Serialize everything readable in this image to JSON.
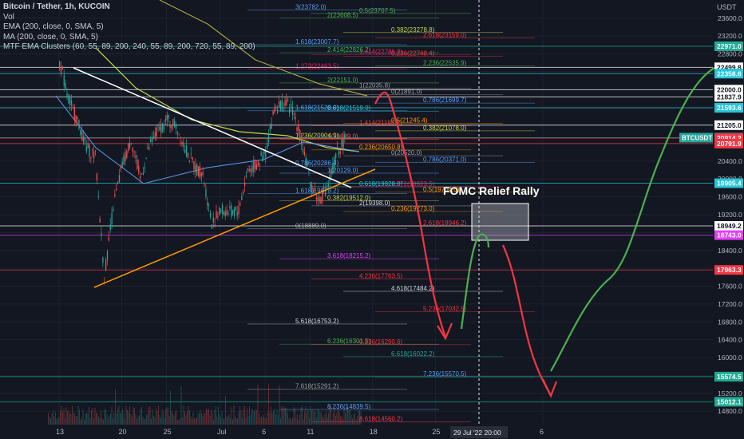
{
  "legend": {
    "title": "Bitcoin / Tether, 1h, KUCOIN",
    "vol": "Vol",
    "ema": "EMA (200, close, 0, SMA, 5)",
    "ma": "MA (200, close, 0, SMA, 5)",
    "mtf": "MTF EMA Clusters (60, 55, 89, 200, 240, 55, 89, 200, 720, 55, 89, 200)"
  },
  "currency": "USDT",
  "chart_data": {
    "type": "candlestick",
    "symbol": "BTCUSDT",
    "exchange": "KUCOIN",
    "interval": "1h",
    "annotation": "FOMC Relief Rally",
    "crosshair_label": "29 Jul '22   20:00",
    "ylim": [
      14500,
      23900
    ],
    "y_ticks": [
      23600,
      23200,
      22800,
      22400,
      22000,
      21600,
      21200,
      20800,
      20400,
      20000,
      19600,
      19200,
      18800,
      18400,
      18000,
      17600,
      17200,
      16800,
      16400,
      16000,
      15600,
      15200,
      14800
    ],
    "x_ticks": [
      {
        "label": "13",
        "date": "2022-06-13"
      },
      {
        "label": "20",
        "date": "2022-06-20"
      },
      {
        "label": "25",
        "date": "2022-06-25"
      },
      {
        "label": "Jul",
        "date": "2022-07-01"
      },
      {
        "label": "6",
        "date": "2022-07-06"
      },
      {
        "label": "11",
        "date": "2022-07-11"
      },
      {
        "label": "18",
        "date": "2022-07-18"
      },
      {
        "label": "25",
        "date": "2022-07-25"
      },
      {
        "label": "6",
        "date": "2022-08-06"
      }
    ],
    "price_markers": [
      {
        "value": "22971.0",
        "color": "#22ab94"
      },
      {
        "value": "22499.8",
        "color": "#ffffff"
      },
      {
        "value": "22358.6",
        "color": "#26c6da"
      },
      {
        "value": "22000.0",
        "color": "#ffffff"
      },
      {
        "value": "21837.9",
        "color": "#ffffff"
      },
      {
        "value": "21593.6",
        "color": "#26c6da"
      },
      {
        "value": "21205.0",
        "color": "#ffffff"
      },
      {
        "value": "BTCUSDT",
        "price": "20924.3",
        "color": "#26a69a"
      },
      {
        "value": "20914.2",
        "color": "#f23645"
      },
      {
        "value": "20791.9",
        "color": "#f23645"
      },
      {
        "value": "19905.4",
        "color": "#26c6da"
      },
      {
        "value": "18949.2",
        "color": "#ffffff"
      },
      {
        "value": "18743.0",
        "color": "#e040fb"
      },
      {
        "value": "17963.3",
        "color": "#f23645"
      },
      {
        "value": "15574.5",
        "color": "#22ab94"
      },
      {
        "value": "15012.1",
        "color": "#22ab94"
      }
    ],
    "fib_levels": [
      {
        "label": "3(23782.0)",
        "value": 23782,
        "color": "#5b9cf6"
      },
      {
        "label": "2(23608.5)",
        "value": 23608.5,
        "color": "#4caf50"
      },
      {
        "label": "0.5(23707.5)",
        "value": 23707.5,
        "color": "#4caf50"
      },
      {
        "label": "0.382(23278.8)",
        "value": 23278.8,
        "color": "#c6d84a"
      },
      {
        "label": "2.618(23159.0)",
        "value": 23159,
        "color": "#f23645"
      },
      {
        "label": "1.618(23007.7)",
        "value": 23007.7,
        "color": "#5b9cf6"
      },
      {
        "label": "2.414(22826.2)",
        "value": 22826.2,
        "color": "#4caf50"
      },
      {
        "label": "1.414(22786.2)",
        "value": 22786.2,
        "color": "#e91e63"
      },
      {
        "label": "0.236(22748.4)",
        "value": 22748.4,
        "color": "#f23645"
      },
      {
        "label": "2.236(22535.9)",
        "value": 22535.9,
        "color": "#4caf50"
      },
      {
        "label": "1.272(22463.5)",
        "value": 22463.5,
        "color": "#e91e63"
      },
      {
        "label": "2(22151.0)",
        "value": 22151,
        "color": "#4caf50"
      },
      {
        "label": "1(22035.8)",
        "value": 22035.8,
        "color": "#9e9e9e"
      },
      {
        "label": "0(21891.0)",
        "value": 21891,
        "color": "#9e9e9e"
      },
      {
        "label": "0.786(21699.7)",
        "value": 21699.7,
        "color": "#5b9cf6"
      },
      {
        "label": "1.618(21528.0)",
        "value": 21528,
        "color": "#5b9cf6"
      },
      {
        "label": "0.618(21519.0)",
        "value": 21519,
        "color": "#26c6da"
      },
      {
        "label": "1.414(21195.2)",
        "value": 21195.2,
        "color": "#f23645"
      },
      {
        "label": "0.5(21245.4)",
        "value": 21245.4,
        "color": "#ff9800"
      },
      {
        "label": "0.382(21078.0)",
        "value": 21078,
        "color": "#c6d84a"
      },
      {
        "label": "1.236(20904.9)",
        "value": 20904.9,
        "color": "#c6d84a"
      },
      {
        "label": "1(20889.0)",
        "value": 20889,
        "color": "#ff5252"
      },
      {
        "label": "0.236(20650.8)",
        "value": 20650.8,
        "color": "#ff9800"
      },
      {
        "label": "0(20520.0)",
        "value": 20520,
        "color": "#9e9e9e"
      },
      {
        "label": "0.786(20371.0)",
        "value": 20371,
        "color": "#5b9cf6"
      },
      {
        "label": "0.786(20286.4)",
        "value": 20286.4,
        "color": "#5b9cf6"
      },
      {
        "label": "1(20129.0)",
        "value": 20129,
        "color": "#5b9cf6"
      },
      {
        "label": "0.618(19828.0)",
        "value": 19828,
        "color": "#26c6da"
      },
      {
        "label": "1.272(19823.5)",
        "value": 19823.5,
        "color": "#e91e63"
      },
      {
        "label": "0.5(19704.0)",
        "value": 19704,
        "color": "#ff9800"
      },
      {
        "label": "1.618(19673.2)",
        "value": 19673.2,
        "color": "#5b9cf6"
      },
      {
        "label": "0.382(19512.0)",
        "value": 19512,
        "color": "#c6d84a"
      },
      {
        "label": "2(19398.0)",
        "value": 19398,
        "color": "#d1d4dc"
      },
      {
        "label": "0.236(19273.0)",
        "value": 19273,
        "color": "#ff9800"
      },
      {
        "label": "2.618(18946.2)",
        "value": 18946.2,
        "color": "#f23645"
      },
      {
        "label": "0(18889.0)",
        "value": 18889,
        "color": "#9e9e9e"
      },
      {
        "label": "3.618(18215.2)",
        "value": 18215.2,
        "color": "#e040fb"
      },
      {
        "label": "4.236(17763.5)",
        "value": 17763.5,
        "color": "#f23645"
      },
      {
        "label": "4.618(17484.2)",
        "value": 17484.2,
        "color": "#d1d4dc"
      },
      {
        "label": "5.236(17032.5)",
        "value": 17032.5,
        "color": "#f23645"
      },
      {
        "label": "5.618(16753.2)",
        "value": 16753.2,
        "color": "#d1d4dc"
      },
      {
        "label": "6.236(16301.5)",
        "value": 16301.5,
        "color": "#4caf50"
      },
      {
        "label": "0.236(16290.6)",
        "value": 16290.6,
        "color": "#f23645"
      },
      {
        "label": "6.618(16022.2)",
        "value": 16022.2,
        "color": "#26a69a"
      },
      {
        "label": "7.236(15570.5)",
        "value": 15570.5,
        "color": "#5b9cf6"
      },
      {
        "label": "7.618(15291.2)",
        "value": 15291.2,
        "color": "#9e9e9e"
      },
      {
        "label": "8.236(14839.5)",
        "value": 14839.5,
        "color": "#5b9cf6"
      },
      {
        "label": "8.618(14560.2)",
        "value": 14560.2,
        "color": "#f23645"
      }
    ],
    "price_path": [
      {
        "date": "2022-06-13",
        "price": 22600
      },
      {
        "date": "2022-06-14",
        "price": 21800
      },
      {
        "date": "2022-06-15",
        "price": 21300
      },
      {
        "date": "2022-06-16",
        "price": 20700
      },
      {
        "date": "2022-06-17",
        "price": 20500
      },
      {
        "date": "2022-06-18",
        "price": 17800
      },
      {
        "date": "2022-06-19",
        "price": 19400
      },
      {
        "date": "2022-06-20",
        "price": 20300
      },
      {
        "date": "2022-06-21",
        "price": 20900
      },
      {
        "date": "2022-06-22",
        "price": 20000
      },
      {
        "date": "2022-06-23",
        "price": 20700
      },
      {
        "date": "2022-06-24",
        "price": 21100
      },
      {
        "date": "2022-06-25",
        "price": 21300
      },
      {
        "date": "2022-06-26",
        "price": 21200
      },
      {
        "date": "2022-06-27",
        "price": 20700
      },
      {
        "date": "2022-06-28",
        "price": 20300
      },
      {
        "date": "2022-06-29",
        "price": 20100
      },
      {
        "date": "2022-06-30",
        "price": 19000
      },
      {
        "date": "2022-07-01",
        "price": 19300
      },
      {
        "date": "2022-07-02",
        "price": 19250
      },
      {
        "date": "2022-07-03",
        "price": 19300
      },
      {
        "date": "2022-07-04",
        "price": 20200
      },
      {
        "date": "2022-07-05",
        "price": 20300
      },
      {
        "date": "2022-07-06",
        "price": 20600
      },
      {
        "date": "2022-07-07",
        "price": 21600
      },
      {
        "date": "2022-07-08",
        "price": 21700
      },
      {
        "date": "2022-07-09",
        "price": 21550
      },
      {
        "date": "2022-07-10",
        "price": 20900
      },
      {
        "date": "2022-07-11",
        "price": 19900
      },
      {
        "date": "2022-07-12",
        "price": 19500
      },
      {
        "date": "2022-07-13",
        "price": 19900
      },
      {
        "date": "2022-07-14",
        "price": 20600
      },
      {
        "date": "2022-07-15",
        "price": 20900
      }
    ]
  }
}
